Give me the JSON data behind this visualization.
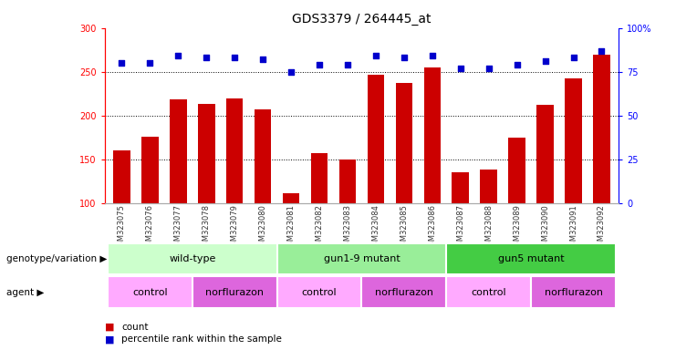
{
  "title": "GDS3379 / 264445_at",
  "samples": [
    "GSM323075",
    "GSM323076",
    "GSM323077",
    "GSM323078",
    "GSM323079",
    "GSM323080",
    "GSM323081",
    "GSM323082",
    "GSM323083",
    "GSM323084",
    "GSM323085",
    "GSM323086",
    "GSM323087",
    "GSM323088",
    "GSM323089",
    "GSM323090",
    "GSM323091",
    "GSM323092"
  ],
  "counts": [
    160,
    176,
    218,
    213,
    220,
    207,
    111,
    157,
    150,
    247,
    237,
    255,
    135,
    138,
    175,
    212,
    242,
    270
  ],
  "percentile_ranks": [
    80,
    80,
    84,
    83,
    83,
    82,
    75,
    79,
    79,
    84,
    83,
    84,
    77,
    77,
    79,
    81,
    83,
    87
  ],
  "ymin": 100,
  "ymax": 300,
  "yticks": [
    100,
    150,
    200,
    250,
    300
  ],
  "right_yticks": [
    0,
    25,
    50,
    75,
    100
  ],
  "bar_color": "#cc0000",
  "dot_color": "#0000cc",
  "genotype_groups": [
    {
      "label": "wild-type",
      "start": 0,
      "end": 5,
      "color": "#ccffcc"
    },
    {
      "label": "gun1-9 mutant",
      "start": 6,
      "end": 11,
      "color": "#99ee99"
    },
    {
      "label": "gun5 mutant",
      "start": 12,
      "end": 17,
      "color": "#44cc44"
    }
  ],
  "agent_groups": [
    {
      "label": "control",
      "start": 0,
      "end": 2,
      "color": "#ffaaff"
    },
    {
      "label": "norflurazon",
      "start": 3,
      "end": 5,
      "color": "#dd66dd"
    },
    {
      "label": "control",
      "start": 6,
      "end": 8,
      "color": "#ffaaff"
    },
    {
      "label": "norflurazon",
      "start": 9,
      "end": 11,
      "color": "#dd66dd"
    },
    {
      "label": "control",
      "start": 12,
      "end": 14,
      "color": "#ffaaff"
    },
    {
      "label": "norflurazon",
      "start": 15,
      "end": 17,
      "color": "#dd66dd"
    }
  ],
  "legend_count_color": "#cc0000",
  "legend_percentile_color": "#0000cc",
  "row_label_genotype": "genotype/variation",
  "row_label_agent": "agent"
}
